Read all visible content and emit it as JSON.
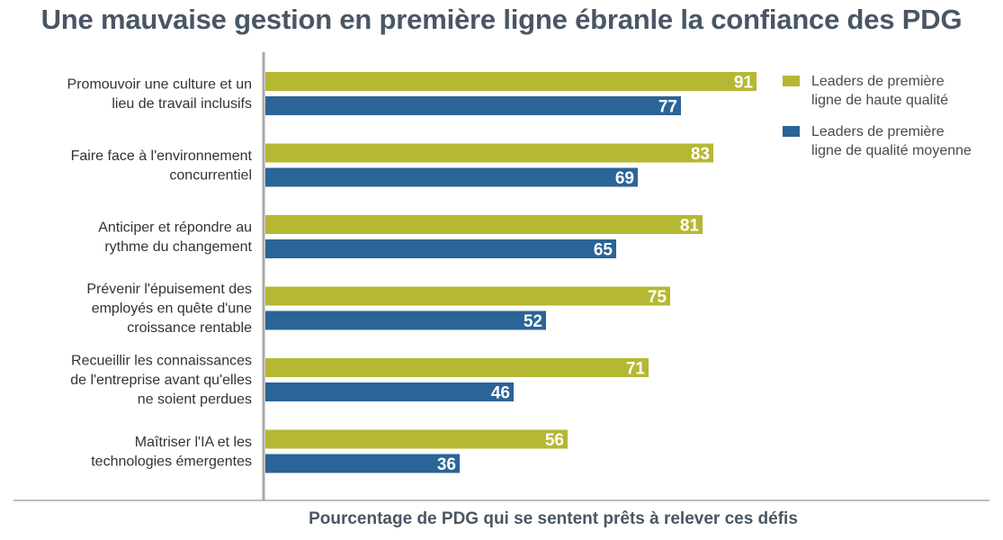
{
  "chart_data": {
    "type": "bar",
    "orientation": "horizontal",
    "title": "Une mauvaise gestion en première ligne ébranle la confiance des PDG",
    "xlabel": "Pourcentage de PDG qui se sentent prêts à relever ces défis",
    "ylabel": "",
    "xlim": [
      0,
      100
    ],
    "grid": false,
    "legend_position": "top-right",
    "categories": [
      [
        "Promouvoir une culture et un",
        "lieu de travail inclusifs"
      ],
      [
        "Faire face à l'environnement",
        "concurrentiel"
      ],
      [
        "Anticiper et répondre au",
        "rythme du changement"
      ],
      [
        "Prévenir l'épuisement des",
        "employés en quête d'une",
        "croissance rentable"
      ],
      [
        "Recueillir les connaissances",
        "de l'entreprise avant qu'elles",
        "ne soient perdues"
      ],
      [
        "Maîtriser l'IA et les",
        "technologies émergentes"
      ]
    ],
    "series": [
      {
        "name": [
          "Leaders de première",
          "ligne de haute qualité"
        ],
        "color": "#b5b832",
        "values": [
          91,
          83,
          81,
          75,
          71,
          56
        ]
      },
      {
        "name": [
          "Leaders de première",
          "ligne de qualité moyenne"
        ],
        "color": "#2b6496",
        "values": [
          77,
          69,
          65,
          52,
          46,
          36
        ]
      }
    ]
  }
}
